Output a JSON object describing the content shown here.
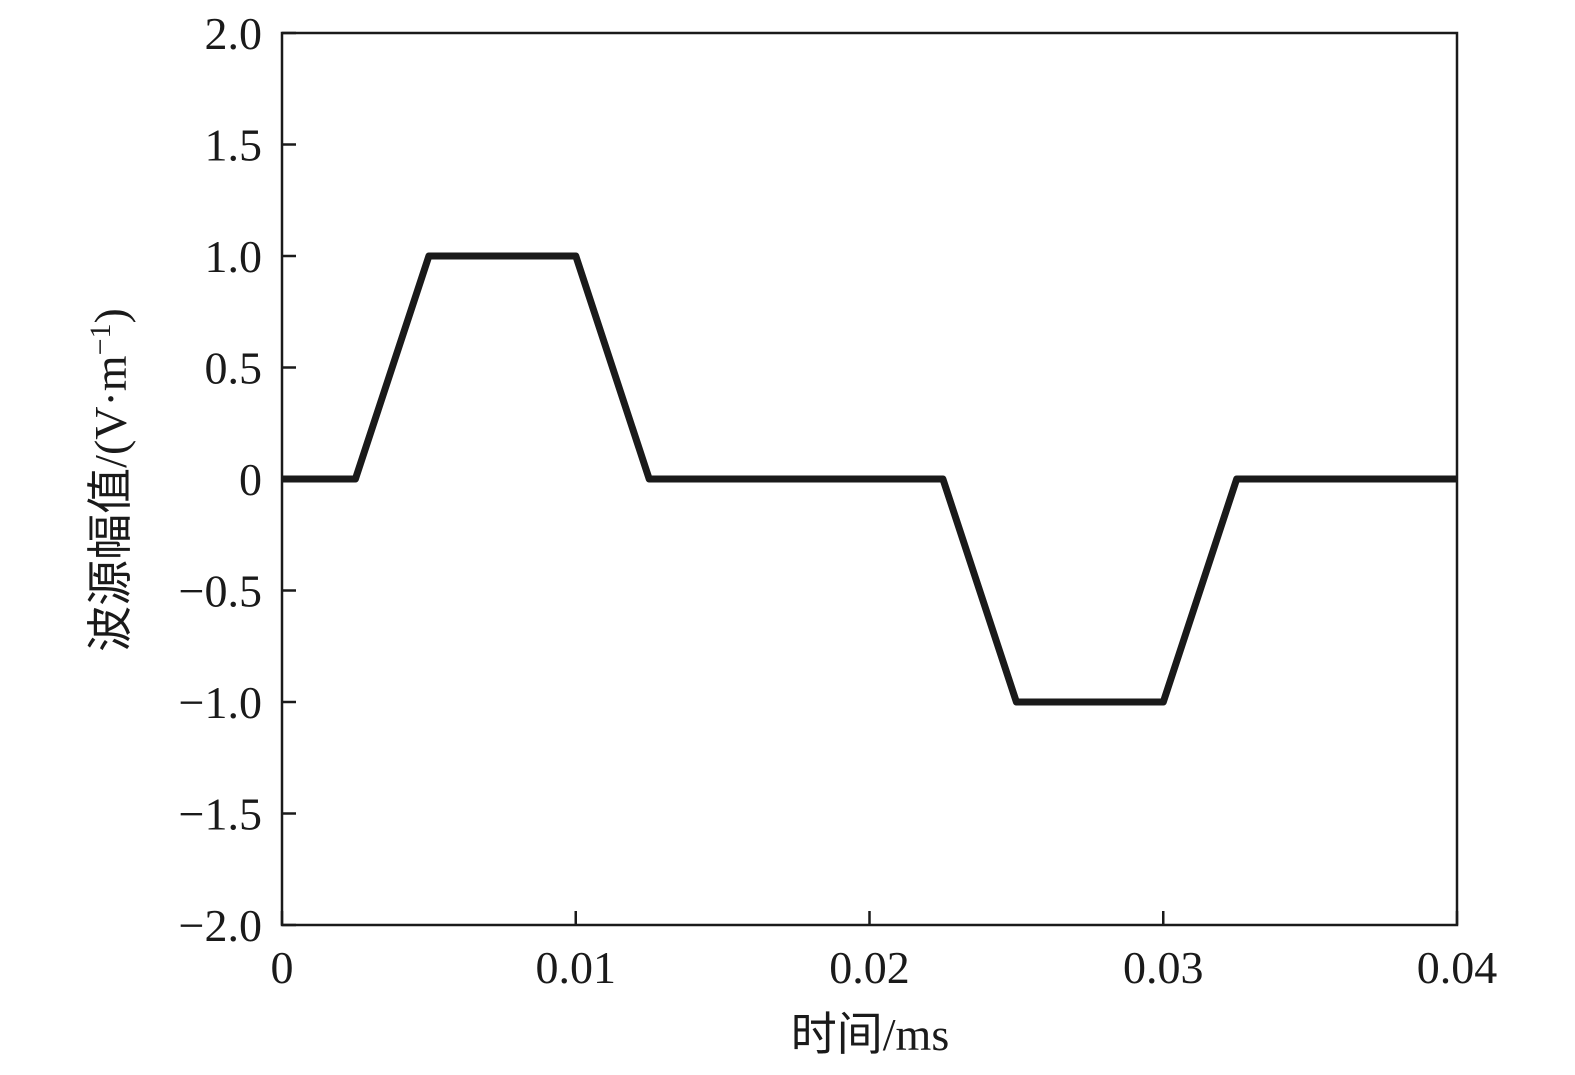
{
  "chart_data": {
    "type": "line",
    "title": "",
    "xlabel": "时间/ms",
    "ylabel_main": "波源幅值/(V·m",
    "ylabel_sup": "−1",
    "ylabel_close": ")",
    "xlim": [
      0,
      0.04
    ],
    "ylim": [
      -2.0,
      2.0
    ],
    "xticks": [
      0,
      0.01,
      0.02,
      0.03,
      0.04
    ],
    "xtick_labels": [
      "0",
      "0.01",
      "0.02",
      "0.03",
      "0.04"
    ],
    "yticks": [
      2.0,
      1.5,
      1.0,
      0.5,
      0,
      -0.5,
      -1.0,
      -1.5,
      -2.0
    ],
    "ytick_labels": [
      "2.0",
      "1.5",
      "1.0",
      "0.5",
      "0",
      "−0.5",
      "−1.0",
      "−1.5",
      "−2.0"
    ],
    "grid": false,
    "line_color": "#1a1a1a",
    "series": [
      {
        "x": [
          0,
          0.0025,
          0.005,
          0.01,
          0.0125,
          0.0225,
          0.025,
          0.03,
          0.0325,
          0.04
        ],
        "y": [
          0,
          0,
          1.0,
          1.0,
          0,
          0,
          -1.0,
          -1.0,
          0,
          0
        ]
      }
    ]
  }
}
